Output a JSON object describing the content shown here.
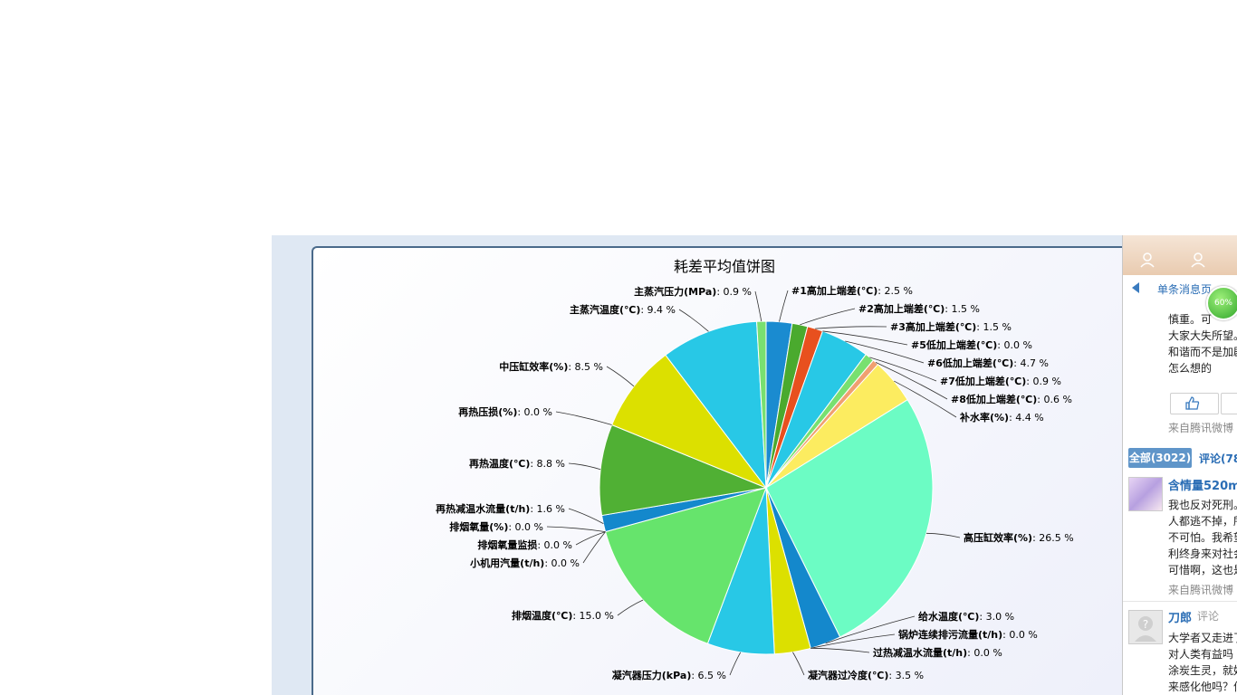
{
  "chart_data": {
    "type": "pie",
    "title": "耗差平均值饼图",
    "unit": "%",
    "slices": [
      {
        "label": "#1高加上端差(℃)",
        "value": 2.5,
        "color": "#1a8bd0"
      },
      {
        "label": "#2高加上端差(℃)",
        "value": 1.5,
        "color": "#4aaa2e"
      },
      {
        "label": "#3高加上端差(℃)",
        "value": 1.5,
        "color": "#e8501e"
      },
      {
        "label": "#5低加上端差(℃)",
        "value": 0.0,
        "color": "#28c0e0"
      },
      {
        "label": "#6低加上端差(℃)",
        "value": 4.7,
        "color": "#28c8e6"
      },
      {
        "label": "#7低加上端差(℃)",
        "value": 0.9,
        "color": "#78e070"
      },
      {
        "label": "#8低加上端差(℃)",
        "value": 0.6,
        "color": "#f0a070"
      },
      {
        "label": "补水率(%)",
        "value": 4.4,
        "color": "#fcec60"
      },
      {
        "label": "高压缸效率(%)",
        "value": 26.5,
        "color": "#6cfcc4"
      },
      {
        "label": "给水温度(℃)",
        "value": 3.0,
        "color": "#1488cc"
      },
      {
        "label": "锅炉连续排污流量(t/h)",
        "value": 0.0,
        "color": "#1488cc"
      },
      {
        "label": "过热减温水流量(t/h)",
        "value": 0.0,
        "color": "#dce000"
      },
      {
        "label": "凝汽器过冷度(℃)",
        "value": 3.5,
        "color": "#dce000"
      },
      {
        "label": "凝汽器压力(kPa)",
        "value": 6.5,
        "color": "#28c8e6"
      },
      {
        "label": "排烟温度(℃)",
        "value": 15.0,
        "color": "#66e46c"
      },
      {
        "label": "小机用汽量(t/h)",
        "value": 0.0,
        "color": "#66e46c"
      },
      {
        "label": "排烟氧量监损",
        "value": 0.0,
        "color": "#66e46c"
      },
      {
        "label": "排烟氧量(%)",
        "value": 0.0,
        "color": "#1488cc"
      },
      {
        "label": "再热减温水流量(t/h)",
        "value": 1.6,
        "color": "#1488cc"
      },
      {
        "label": "再热温度(℃)",
        "value": 8.8,
        "color": "#50b034"
      },
      {
        "label": "再热压损(%)",
        "value": 0.0,
        "color": "#dce000"
      },
      {
        "label": "中压缸效率(%)",
        "value": 8.5,
        "color": "#dce000"
      },
      {
        "label": "主蒸汽温度(℃)",
        "value": 9.4,
        "color": "#28c8e6"
      },
      {
        "label": "主蒸汽压力(MPa)",
        "value": 0.9,
        "color": "#78e070"
      }
    ]
  },
  "sidebar": {
    "nav_title": "单条消息页",
    "progress_badge": "60%",
    "snippet_lines": [
      "慎重。可",
      "大家大失所望。",
      "和谐而不是加剧",
      "怎么想的"
    ],
    "source_1": "来自腾讯微博",
    "tab_all": "全部(3022)",
    "tab_comment": "评论(78",
    "comment_1": {
      "user": "含情量520ml",
      "lines": [
        "我也反对死刑。",
        "人都逃不掉，所",
        "不可怕。我希望",
        "利终身来对社会",
        "可惜啊，这也是"
      ],
      "source": "来自腾讯微博"
    },
    "comment_2": {
      "user": "刀郎",
      "action": "评论",
      "lines": [
        "大学者又走进了",
        "对人类有益吗",
        "涂炭生灵，就好",
        "来感化他吗？何"
      ]
    }
  }
}
